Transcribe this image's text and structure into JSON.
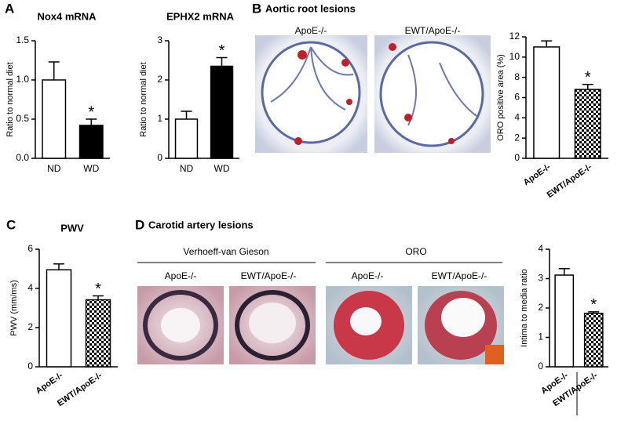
{
  "panels": {
    "a_letter": "A",
    "b_letter": "B",
    "b_title": "Aortic root lesions",
    "b_img1": "ApoE-/-",
    "b_img2": "EWT/ApoE-/-",
    "c_letter": "C",
    "d_letter": "D",
    "d_title": "Carotid artery lesions",
    "d_group1": "Verhoeff-van Gieson",
    "d_group2": "ORO",
    "d_img1": "ApoE-/-",
    "d_img2": "EWT/ApoE-/-",
    "d_img3": "ApoE-/-",
    "d_img4": "EWT/ApoE-/-"
  },
  "chart_data": [
    {
      "type": "bar",
      "title": "Nox4 mRNA",
      "ylabel": "Ratio to normal diet",
      "categories": [
        "ND",
        "WD"
      ],
      "values": [
        1.0,
        0.42
      ],
      "errors": [
        0.23,
        0.08
      ],
      "value_annotations": [
        null,
        "*"
      ],
      "fills": [
        "#ffffff",
        "#000000"
      ],
      "ylim": [
        0,
        1.5
      ],
      "yticks": [
        {
          "value": 0,
          "label": "0.0"
        },
        {
          "value": 0.5,
          "label": "0.5"
        },
        {
          "value": 1,
          "label": "1.0"
        },
        {
          "value": 1.5,
          "label": "1.5"
        }
      ]
    },
    {
      "type": "bar",
      "title": "EPHX2 mRNA",
      "ylabel": "Ratio to normal diet",
      "categories": [
        "ND",
        "WD"
      ],
      "values": [
        1.0,
        2.35
      ],
      "errors": [
        0.2,
        0.22
      ],
      "value_annotations": [
        null,
        "*"
      ],
      "fills": [
        "#ffffff",
        "#000000"
      ],
      "ylim": [
        0,
        3
      ],
      "yticks": [
        0,
        1,
        2,
        3
      ]
    },
    {
      "type": "bar",
      "ylabel": "ORO positive area (%)",
      "categories": [
        "ApoE-/-",
        "EWT/ApoE-/-"
      ],
      "values": [
        11.0,
        6.8
      ],
      "errors": [
        0.6,
        0.5
      ],
      "value_annotations": [
        null,
        "*"
      ],
      "fills": [
        "#ffffff",
        "checkered"
      ],
      "ylim": [
        0,
        12
      ],
      "yticks": [
        0,
        2,
        4,
        6,
        8,
        10,
        12
      ]
    },
    {
      "type": "bar",
      "title": "PWV",
      "ylabel": "PWV (mm/ms)",
      "categories": [
        "ApoE-/-",
        "EWT/ApoE-/-"
      ],
      "values": [
        4.95,
        3.42
      ],
      "errors": [
        0.3,
        0.2
      ],
      "value_annotations": [
        null,
        "*"
      ],
      "fills": [
        "#ffffff",
        "checkered"
      ],
      "ylim": [
        0,
        6
      ],
      "yticks": [
        0,
        2,
        4,
        6
      ]
    },
    {
      "type": "bar",
      "ylabel": "Intima to media ratio",
      "categories": [
        "ApoE-/-",
        "EWT/ApoE-/-"
      ],
      "values": [
        3.12,
        1.82
      ],
      "errors": [
        0.22,
        0.05
      ],
      "value_annotations": [
        null,
        "*"
      ],
      "fills": [
        "#ffffff",
        "checkered"
      ],
      "ylim": [
        0,
        4
      ],
      "yticks": [
        0,
        1,
        2,
        3,
        4
      ]
    }
  ]
}
